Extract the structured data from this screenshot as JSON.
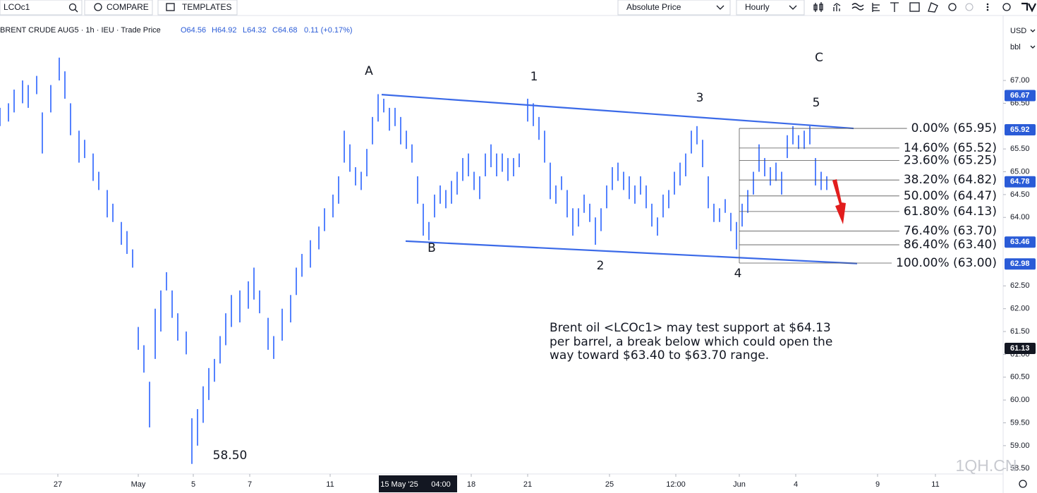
{
  "toolbar": {
    "symbol": "LCOc1",
    "compare": "COMPARE",
    "templates": "TEMPLATES",
    "price_mode": "Absolute Price",
    "interval": "Hourly"
  },
  "chart_data": {
    "type": "ohlc",
    "title": "BRENT CRUDE AUG5 · 1h · IEU · Trade Price",
    "ohlc_legend": {
      "open": "O64.56",
      "high": "H64.92",
      "low": "L64.32",
      "close": "C64.68",
      "change": "0.11 (+0.17%)"
    },
    "currency": "USD",
    "unit": "bbl",
    "color": "#2962ff",
    "x": [
      0,
      3,
      5,
      8,
      10,
      13,
      15,
      18,
      21,
      23,
      25,
      28,
      30,
      33,
      35,
      38,
      40,
      43,
      45,
      47,
      49,
      51,
      53,
      55,
      57,
      59,
      61,
      63,
      66,
      68,
      70,
      72,
      74,
      76,
      78,
      80,
      82,
      85,
      88,
      90,
      92,
      95,
      97,
      100,
      103,
      105,
      107,
      110,
      113,
      115,
      118,
      120,
      122,
      124,
      126,
      128,
      130,
      132,
      134,
      136,
      138,
      140,
      142,
      144,
      146,
      148,
      150,
      152,
      154,
      156,
      158,
      160,
      162,
      164,
      166,
      168,
      170,
      172,
      174,
      176,
      178,
      180,
      182,
      184,
      187,
      189,
      191,
      193,
      195,
      197,
      199,
      201,
      203,
      205,
      207,
      209,
      211,
      213,
      215,
      217,
      219,
      221,
      223,
      225,
      227,
      229,
      231,
      233,
      235,
      237,
      239,
      241,
      243,
      245,
      247,
      249,
      251,
      253,
      255,
      257,
      259,
      261,
      263,
      265,
      267,
      269,
      271,
      273,
      275,
      277,
      279,
      281,
      283,
      285,
      287,
      289,
      291,
      293
    ],
    "high": [
      66.4,
      66.5,
      66.8,
      67.0,
      66.9,
      67.1,
      66.3,
      66.9,
      67.5,
      67.2,
      66.5,
      65.9,
      65.7,
      65.4,
      65.0,
      64.6,
      64.3,
      63.9,
      63.7,
      63.3,
      61.6,
      61.2,
      60.4,
      62.0,
      62.4,
      62.8,
      62.4,
      61.9,
      61.5,
      59.6,
      59.8,
      60.3,
      60.7,
      60.9,
      61.4,
      61.9,
      62.3,
      62.4,
      62.6,
      62.9,
      62.4,
      61.8,
      61.4,
      62.0,
      62.3,
      62.9,
      63.2,
      63.5,
      63.8,
      64.2,
      64.5,
      64.9,
      65.9,
      65.6,
      65.1,
      65.0,
      65.5,
      66.2,
      66.7,
      66.6,
      66.4,
      66.4,
      66.2,
      65.9,
      65.6,
      64.9,
      64.3,
      63.9,
      64.5,
      64.7,
      64.6,
      64.8,
      65.0,
      65.3,
      65.4,
      65.0,
      64.9,
      65.4,
      65.6,
      65.4,
      65.4,
      65.3,
      65.3,
      65.4,
      66.6,
      66.5,
      66.2,
      65.9,
      65.2,
      64.7,
      64.9,
      64.6,
      64.2,
      64.2,
      64.5,
      64.3,
      64.0,
      64.2,
      64.7,
      65.1,
      65.2,
      65.0,
      64.9,
      64.7,
      64.9,
      64.7,
      64.3,
      64.0,
      64.5,
      64.6,
      65.0,
      65.2,
      65.4,
      65.9,
      66.0,
      65.7,
      64.9,
      64.3,
      64.2,
      64.4,
      64.1,
      63.9,
      64.3,
      64.6,
      65.0,
      65.6,
      65.3,
      65.1,
      65.2,
      65.0,
      65.8,
      66.0,
      65.8,
      65.9,
      66.0,
      65.3,
      65.0,
      64.9
    ],
    "low": [
      66.0,
      66.1,
      66.3,
      66.5,
      66.4,
      66.7,
      65.4,
      66.3,
      67.0,
      66.6,
      65.8,
      65.2,
      65.3,
      64.8,
      64.6,
      64.0,
      63.9,
      63.4,
      63.2,
      62.9,
      61.1,
      60.6,
      59.4,
      60.9,
      61.5,
      62.4,
      61.8,
      61.3,
      61.0,
      58.6,
      59.0,
      59.5,
      60.0,
      60.4,
      60.8,
      61.2,
      61.6,
      61.7,
      62.0,
      62.2,
      61.9,
      61.1,
      60.9,
      61.3,
      61.7,
      62.3,
      62.7,
      62.9,
      63.3,
      63.7,
      64.0,
      64.3,
      65.2,
      65.0,
      64.7,
      64.6,
      64.9,
      65.6,
      66.1,
      66.3,
      65.9,
      66.0,
      65.6,
      65.5,
      65.2,
      64.3,
      63.6,
      63.5,
      64.0,
      64.3,
      64.2,
      64.3,
      64.5,
      64.8,
      64.9,
      64.6,
      64.4,
      64.9,
      65.1,
      64.9,
      65.0,
      64.8,
      64.9,
      65.1,
      66.1,
      66.0,
      65.7,
      65.2,
      64.4,
      64.3,
      64.6,
      64.0,
      63.6,
      63.8,
      64.1,
      63.9,
      63.4,
      63.7,
      64.2,
      64.6,
      64.8,
      64.6,
      64.4,
      64.3,
      64.5,
      64.2,
      63.8,
      63.6,
      64.0,
      64.2,
      64.5,
      64.7,
      64.9,
      65.4,
      65.6,
      65.1,
      64.2,
      63.9,
      63.9,
      64.1,
      63.7,
      63.3,
      63.8,
      64.1,
      64.5,
      65.0,
      64.9,
      64.7,
      64.8,
      64.5,
      65.3,
      65.6,
      65.5,
      65.5,
      65.6,
      64.7,
      64.6,
      64.6
    ],
    "xlim": [
      0,
      355
    ],
    "xticks": [
      {
        "value": 20.5,
        "label": "27"
      },
      {
        "value": 49,
        "label": "May"
      },
      {
        "value": 68.5,
        "label": "5"
      },
      {
        "value": 88.5,
        "label": "7"
      },
      {
        "value": 117,
        "label": "11"
      },
      {
        "value": 167,
        "label": "18"
      },
      {
        "value": 187,
        "label": "21"
      },
      {
        "value": 216,
        "label": "25"
      },
      {
        "value": 239.5,
        "label": "12:00"
      },
      {
        "value": 262,
        "label": "Jun"
      },
      {
        "value": 282,
        "label": "4"
      },
      {
        "value": 311,
        "label": "9"
      },
      {
        "value": 331.5,
        "label": "11"
      }
    ],
    "crosshair": {
      "x": 148,
      "date_label": "15 May '25",
      "time_label": "04:00"
    },
    "ylim": [
      58.38,
      68.33
    ],
    "yticks": [
      {
        "value": 58.5,
        "label": "58.50"
      },
      {
        "value": 59,
        "label": "59.00"
      },
      {
        "value": 59.5,
        "label": "59.50"
      },
      {
        "value": 60,
        "label": "60.00"
      },
      {
        "value": 60.5,
        "label": "60.50"
      },
      {
        "value": 61,
        "label": "61.00"
      },
      {
        "value": 61.5,
        "label": "61.50"
      },
      {
        "value": 62,
        "label": "62.00"
      },
      {
        "value": 62.5,
        "label": "62.50"
      },
      {
        "value": 64,
        "label": "64.00"
      },
      {
        "value": 64.5,
        "label": "64.50"
      },
      {
        "value": 65,
        "label": "65.00"
      },
      {
        "value": 65.5,
        "label": "65.50"
      },
      {
        "value": 66.5,
        "label": "66.50"
      },
      {
        "value": 67,
        "label": "67.00"
      }
    ],
    "grid": false,
    "price_markers": [
      {
        "value": 66.67,
        "label": "66.67",
        "color": "#2a5bd7"
      },
      {
        "value": 65.92,
        "label": "65.92",
        "color": "#2a5bd7"
      },
      {
        "value": 64.78,
        "label": "64.78",
        "color": "#2a5bd7"
      },
      {
        "value": 63.46,
        "label": "63.46",
        "color": "#2a5bd7"
      },
      {
        "value": 62.98,
        "label": "62.98",
        "color": "#2a5bd7"
      },
      {
        "value": 61.13,
        "label": "61.13",
        "color": "#131722"
      }
    ],
    "trendlines": [
      {
        "x": [
          135.25,
          302.5
        ],
        "y": [
          66.69,
          65.95
        ],
        "color": "#3b6ae8"
      },
      {
        "x": [
          143.75,
          303.75
        ],
        "y": [
          63.48,
          62.99
        ],
        "color": "#3b6ae8"
      }
    ],
    "fib": {
      "x": [
        262,
        322
      ],
      "color": "#555555",
      "levels": [
        {
          "percent": 0,
          "price": 65.95,
          "label": "0.00% (65.95)"
        },
        {
          "percent": 14.6,
          "price": 65.52,
          "label": "14.60% (65.52)"
        },
        {
          "percent": 23.6,
          "price": 65.25,
          "label": "23.60% (65.25)"
        },
        {
          "percent": 38.2,
          "price": 64.82,
          "label": "38.20% (64.82)"
        },
        {
          "percent": 50,
          "price": 64.47,
          "label": "50.00% (64.47)"
        },
        {
          "percent": 61.8,
          "price": 64.13,
          "label": "61.80% (64.13)"
        },
        {
          "percent": 76.4,
          "price": 63.7,
          "label": "76.40% (63.70)"
        },
        {
          "percent": 86.4,
          "price": 63.4,
          "label": "86.40% (63.40)"
        },
        {
          "percent": 100,
          "price": 63.0,
          "label": "100.00% (63.00)"
        }
      ]
    },
    "wave_labels": [
      "A",
      "B",
      "1",
      "2",
      "3",
      "4",
      "5",
      "C"
    ],
    "low_label": "58.50",
    "annotation": [
      "Brent oil <LCOc1> may test support at $64.13",
      "per barrel, a break below which could open the",
      "way toward $63.40 to $63.70 range."
    ],
    "watermark": "1QH.CN"
  }
}
